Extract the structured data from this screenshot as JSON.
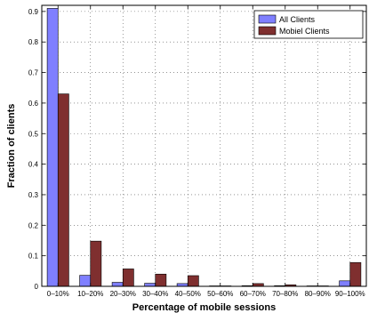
{
  "chart_data": {
    "type": "bar",
    "title": "",
    "xlabel": "Percentage of mobile sessions",
    "ylabel": "Fraction of clients",
    "ylim": [
      0,
      0.92
    ],
    "yticks": [
      "0",
      "0.1",
      "0.2",
      "0.3",
      "0.4",
      "0.5",
      "0.6",
      "0.7",
      "0.8",
      "0.9"
    ],
    "grid": true,
    "legend_position": "top-right",
    "categories": [
      "0–10%",
      "10–20%",
      "20–30%",
      "30–40%",
      "40–50%",
      "50–60%",
      "60–70%",
      "70–80%",
      "80–90%",
      "90–100%"
    ],
    "series": [
      {
        "name": "All Clients",
        "color": "#7f7fff",
        "values": [
          0.91,
          0.036,
          0.013,
          0.01,
          0.009,
          0.001,
          0.002,
          0.002,
          0.001,
          0.018
        ]
      },
      {
        "name": "Mobiel Clients",
        "color": "#7f2f2f",
        "values": [
          0.63,
          0.148,
          0.057,
          0.04,
          0.035,
          0.001,
          0.009,
          0.005,
          0.001,
          0.078
        ]
      }
    ]
  }
}
